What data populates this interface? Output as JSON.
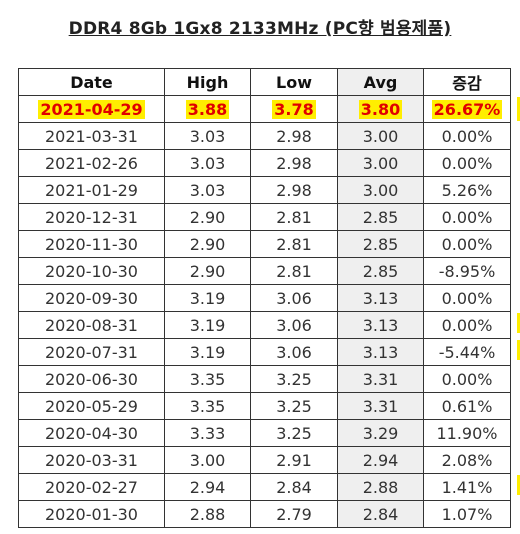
{
  "title": "DDR4 8Gb 1Gx8 2133MHz (PC향 범용제품)",
  "columns": [
    "Date",
    "High",
    "Low",
    "Avg",
    "증감"
  ],
  "rows": [
    {
      "date": "2021-04-29",
      "high": "3.88",
      "low": "3.78",
      "avg": "3.80",
      "change": "26.67%"
    },
    {
      "date": "2021-03-31",
      "high": "3.03",
      "low": "2.98",
      "avg": "3.00",
      "change": "0.00%"
    },
    {
      "date": "2021-02-26",
      "high": "3.03",
      "low": "2.98",
      "avg": "3.00",
      "change": "0.00%"
    },
    {
      "date": "2021-01-29",
      "high": "3.03",
      "low": "2.98",
      "avg": "3.00",
      "change": "5.26%"
    },
    {
      "date": "2020-12-31",
      "high": "2.90",
      "low": "2.81",
      "avg": "2.85",
      "change": "0.00%"
    },
    {
      "date": "2020-11-30",
      "high": "2.90",
      "low": "2.81",
      "avg": "2.85",
      "change": "0.00%"
    },
    {
      "date": "2020-10-30",
      "high": "2.90",
      "low": "2.81",
      "avg": "2.85",
      "change": "-8.95%"
    },
    {
      "date": "2020-09-30",
      "high": "3.19",
      "low": "3.06",
      "avg": "3.13",
      "change": "0.00%"
    },
    {
      "date": "2020-08-31",
      "high": "3.19",
      "low": "3.06",
      "avg": "3.13",
      "change": "0.00%"
    },
    {
      "date": "2020-07-31",
      "high": "3.19",
      "low": "3.06",
      "avg": "3.13",
      "change": "-5.44%"
    },
    {
      "date": "2020-06-30",
      "high": "3.35",
      "low": "3.25",
      "avg": "3.31",
      "change": "0.00%"
    },
    {
      "date": "2020-05-29",
      "high": "3.35",
      "low": "3.25",
      "avg": "3.31",
      "change": "0.61%"
    },
    {
      "date": "2020-04-30",
      "high": "3.33",
      "low": "3.25",
      "avg": "3.29",
      "change": "11.90%"
    },
    {
      "date": "2020-03-31",
      "high": "3.00",
      "low": "2.91",
      "avg": "2.94",
      "change": "2.08%"
    },
    {
      "date": "2020-02-27",
      "high": "2.94",
      "low": "2.84",
      "avg": "2.88",
      "change": "1.41%"
    },
    {
      "date": "2020-01-30",
      "high": "2.88",
      "low": "2.79",
      "avg": "2.84",
      "change": "1.07%"
    }
  ],
  "highlight_color": "#ffee00",
  "highlight_text_color": "#e00000"
}
